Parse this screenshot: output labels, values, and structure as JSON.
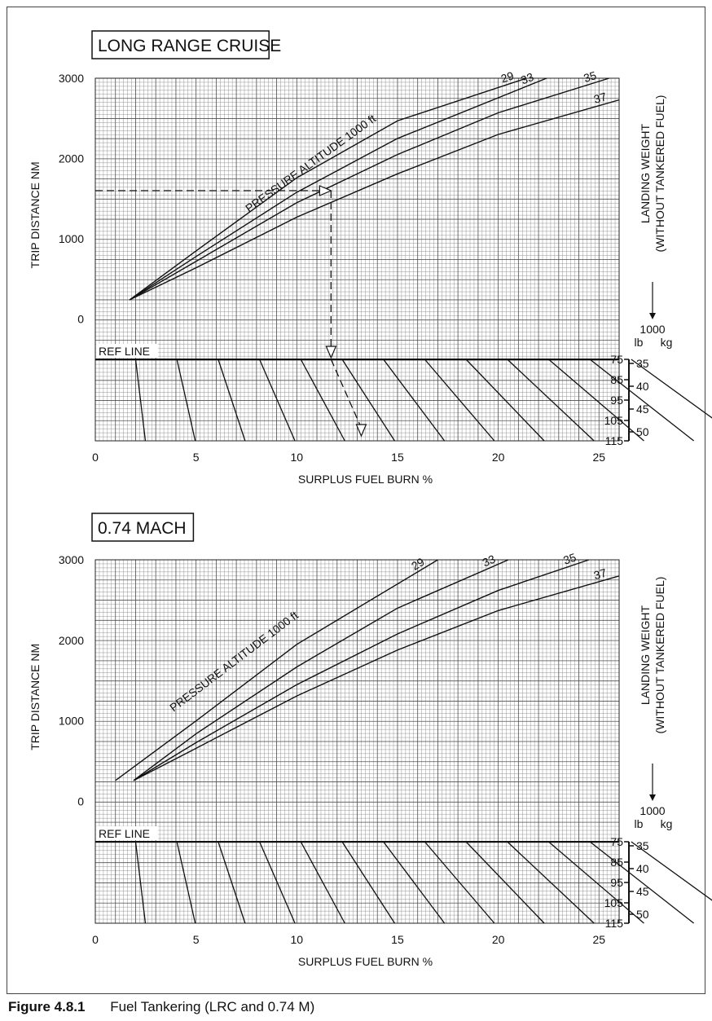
{
  "figure": {
    "label": "Figure 4.8.1",
    "caption": "Fuel Tankering (LRC and 0.74 M)"
  },
  "chart_data": [
    {
      "type": "line",
      "title": "LONG RANGE CRUISE",
      "xlabel": "SURPLUS FUEL BURN  %",
      "ylabel": "TRIP DISTANCE  NM",
      "right_label_1": "LANDING WEIGHT",
      "right_label_2": "(WITHOUT TANKERED FUEL)",
      "xlim": [
        0,
        26
      ],
      "ylim": [
        0,
        3000
      ],
      "x_ticks": [
        "0",
        "5",
        "10",
        "15",
        "20",
        "25"
      ],
      "y_ticks": [
        "0",
        "1000",
        "2000",
        "3000"
      ],
      "grid": true,
      "curve_label_title": "PRESSURE ALTITUDE 1000 ft",
      "series": [
        {
          "name": "29",
          "x": [
            1.7,
            5,
            10,
            15,
            21.4
          ],
          "y": [
            240,
            850,
            1760,
            2470,
            3000
          ]
        },
        {
          "name": "33",
          "x": [
            1.7,
            5,
            10,
            15,
            22.4
          ],
          "y": [
            240,
            780,
            1580,
            2250,
            3000
          ]
        },
        {
          "name": "35",
          "x": [
            1.7,
            5,
            10,
            15,
            20,
            25.5
          ],
          "y": [
            240,
            720,
            1450,
            2050,
            2570,
            3000
          ]
        },
        {
          "name": "37",
          "x": [
            1.7,
            5,
            10,
            15,
            20,
            26
          ],
          "y": [
            240,
            640,
            1270,
            1810,
            2300,
            2730
          ]
        }
      ],
      "ref_line_label": "REF LINE",
      "weight_unit_header": "1000",
      "weight_lb_label": "lb",
      "weight_kg_label": "kg",
      "weight_lb_ticks": [
        "75",
        "85",
        "95",
        "105",
        "115"
      ],
      "weight_kg_ticks": [
        "35",
        "40",
        "45",
        "50"
      ],
      "example": {
        "trip_distance": 1600,
        "surplus_fuel_burn": 11.7,
        "result_fuel_burn": 13.2
      }
    },
    {
      "type": "line",
      "title": "0.74 MACH",
      "xlabel": "SURPLUS FUEL BURN  %",
      "ylabel": "TRIP DISTANCE  NM",
      "right_label_1": "LANDING WEIGHT",
      "right_label_2": "(WITHOUT TANKERED FUEL)",
      "xlim": [
        0,
        26
      ],
      "ylim": [
        0,
        3000
      ],
      "x_ticks": [
        "0",
        "5",
        "10",
        "15",
        "20",
        "25"
      ],
      "y_ticks": [
        "0",
        "1000",
        "2000",
        "3000"
      ],
      "grid": true,
      "curve_label_title": "PRESSURE ALTITUDE 1000 ft",
      "series": [
        {
          "name": "29",
          "x": [
            1,
            5,
            10,
            17
          ],
          "y": [
            260,
            1000,
            1950,
            3000
          ]
        },
        {
          "name": "33",
          "x": [
            1.9,
            5,
            10,
            15,
            20.5
          ],
          "y": [
            260,
            840,
            1670,
            2400,
            3000
          ]
        },
        {
          "name": "35",
          "x": [
            1.9,
            5,
            10,
            15,
            20,
            24.5
          ],
          "y": [
            260,
            730,
            1450,
            2080,
            2620,
            3000
          ]
        },
        {
          "name": "37",
          "x": [
            1.9,
            5,
            10,
            15,
            20,
            26
          ],
          "y": [
            260,
            660,
            1310,
            1880,
            2370,
            2800
          ]
        }
      ],
      "ref_line_label": "REF LINE",
      "weight_unit_header": "1000",
      "weight_lb_label": "lb",
      "weight_kg_label": "kg",
      "weight_lb_ticks": [
        "75",
        "85",
        "95",
        "105",
        "115"
      ],
      "weight_kg_ticks": [
        "35",
        "40",
        "45",
        "50"
      ]
    }
  ]
}
